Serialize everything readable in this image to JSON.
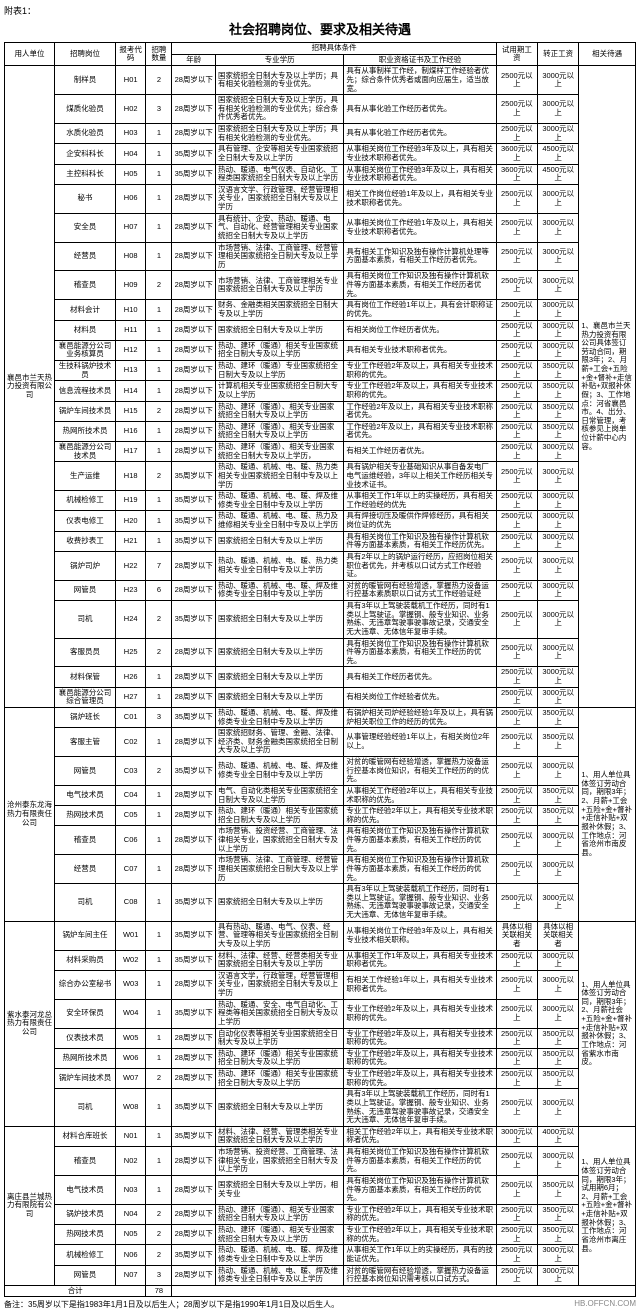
{
  "top_label": "附表1：",
  "title": "社会招聘岗位、要求及相关待遇",
  "headers": {
    "unit": "用人单位",
    "position": "招聘岗位",
    "code": "报考代码",
    "count": "招聘数量",
    "cond_group": "招聘具体条件",
    "age": "年龄",
    "edu": "专业学历",
    "exp": "职业资格证书及工作经验",
    "try": "试用期工资",
    "reg": "转正工资",
    "treat": "相关待遇"
  },
  "groups": [
    {
      "unit": "襄邑市兰天热力投资有限公司",
      "treat": "1、襄邑市兰天热力投资有限公司具体签订劳动合同，期限3年；2、月薪+工会+五险+金+督补+走信补贴+双报补休假；3、工作地点：河省襄邑市。4、出分、日常管理，考核参见上岗单位计薪中心内容。",
      "rows": [
        {
          "pos": "制样员",
          "code": "H01",
          "num": "2",
          "age": "28周岁以下",
          "edu": "国家统招全日制大专及以上学历；具有相关化验检测的专业优先。",
          "exp": "具有从事制样工作经，制煤样工作经验者优先；综合条件优秀者或面向应届生，适当放宽。",
          "try": "2500元以上",
          "reg": "3000元以上"
        },
        {
          "pos": "煤质化验员",
          "code": "H02",
          "num": "3",
          "age": "28周岁以下",
          "edu": "国家统招全日制大专及以上学历，具有相关化验检测的专业优先；综合条件优秀者优先。",
          "exp": "具有从事化验工作经历者优先。",
          "try": "2500元以上",
          "reg": "3000元以上"
        },
        {
          "pos": "水质化验员",
          "code": "H03",
          "num": "1",
          "age": "28周岁以下",
          "edu": "国家统招全日制大专及以上学历；具有相关化验检测的专业优先。",
          "exp": "具有从事化验工作经历者优先。",
          "try": "2500元以上",
          "reg": "3000元以上"
        },
        {
          "pos": "企安科科长",
          "code": "H04",
          "num": "1",
          "age": "35周岁以下",
          "edu": "具有管理、企安等相关专业国家统招全日制大专及以上学历",
          "exp": "从事相关岗位工作经验3年及以上，具有相关专业技术职称者优先。",
          "try": "3600元以上",
          "reg": "4500元以上"
        },
        {
          "pos": "主控科科长",
          "code": "H05",
          "num": "1",
          "age": "35周岁以下",
          "edu": "热动、暖通、电气仪表、自动化、工程类国家统招全日制大专及以上学历",
          "exp": "从事相关岗位工作经验3年及以上，具有相关专业技术职称者优先。",
          "try": "3600元以上",
          "reg": "4500元以上"
        },
        {
          "pos": "秘书",
          "code": "H06",
          "num": "1",
          "age": "28周岁以下",
          "edu": "汉语言文学、行政管理、经营管理相关专业，国家统招全日制大专及以上学历",
          "exp": "相关工作岗位经验1年及以上，具有相关专业技术职称者优先。",
          "try": "2500元以上",
          "reg": "3000元以上"
        },
        {
          "pos": "安全员",
          "code": "H07",
          "num": "1",
          "age": "28周岁以下",
          "edu": "具有统计、企安、热动、暖通、电气、自动化、经营管理相关专业国家统招全日制大专及以上学历",
          "exp": "从事相关岗位工作经验1年及以上，具有相关专业技术职称者优先。",
          "try": "2500元以上",
          "reg": "3000元以上"
        },
        {
          "pos": "经营员",
          "code": "H08",
          "num": "1",
          "age": "28周岁以下",
          "edu": "市场营销、法律、工商管理、经营管理相关国家统招全日制大专及以上学历",
          "exp": "具有相关工作知识及独有操作计算机处理等方面基本素质，有相关工作经历者优先。",
          "try": "2500元以上",
          "reg": "3000元以上"
        },
        {
          "pos": "稽查员",
          "code": "H09",
          "num": "2",
          "age": "28周岁以下",
          "edu": "市场营销、法律、工商管理相关专业国家统招全日制大专及以上学历",
          "exp": "具有相关岗位工作知识及独有操作计算机软件等方面基本素质，有相关工作经历者优先。",
          "try": "2500元以上",
          "reg": "3000元以上"
        },
        {
          "pos": "材料会计",
          "code": "H10",
          "num": "1",
          "age": "28周岁以下",
          "edu": "财务、金融类相关国家统招全日制大专及以上学历",
          "exp": "具有岗位工作经验1年以上，具有会计职称证的优先。",
          "try": "2500元以上",
          "reg": "3000元以上"
        },
        {
          "pos": "材料员",
          "code": "H11",
          "num": "1",
          "age": "28周岁以下",
          "edu": "国家统招全日制大专及以上学历",
          "exp": "有相关岗位工作经历者优先。",
          "try": "2500元以上",
          "reg": "3000元以上"
        },
        {
          "pos": "襄邑能源分公司业务核算员",
          "code": "H12",
          "num": "1",
          "age": "28周岁以下",
          "edu": "热动、建环（暖通）相关专业国家统招全日制大专及以上学历",
          "exp": "具有相关专业技术职称者优先。",
          "try": "2500元以上",
          "reg": "3000元以上"
        },
        {
          "pos": "生技科锅炉技术员",
          "code": "H13",
          "num": "1",
          "age": "28周岁以下",
          "edu": "热动、建环（暖通）专业国家统招全日制大专及以上学历",
          "exp": "专业工作经验2年及以上，具有相关专业技术职称的优先。",
          "try": "2500元以上",
          "reg": "3500元以上"
        },
        {
          "pos": "信息流程技术员",
          "code": "H14",
          "num": "1",
          "age": "28周岁以下",
          "edu": "计算机相关专业国家统招全日制大专及以上学历",
          "exp": "专业工作经验2年及以上，具有相关专业技术职称的优先。",
          "try": "2500元以上",
          "reg": "3500元以上"
        },
        {
          "pos": "锅炉车间技术员",
          "code": "H15",
          "num": "2",
          "age": "28周岁以下",
          "edu": "热动、建环（暖通）、相关专业国家统招全日制大专及以上学历",
          "exp": "工作经验2年及以上，具有相关专业技术职称者优先。",
          "try": "2500元以上",
          "reg": "3500元以上"
        },
        {
          "pos": "热网所技术员",
          "code": "H16",
          "num": "1",
          "age": "28周岁以下",
          "edu": "热动、建环（暖通）、相关专业国家统招全日制大专及以上学历",
          "exp": "工作经验2年及以上，具有相关专业技术职称者优先。",
          "try": "2500元以上",
          "reg": "3500元以上"
        },
        {
          "pos": "襄邑能源分公司技术员",
          "code": "H17",
          "num": "1",
          "age": "28周岁以下",
          "edu": "热动、建环（暖通）、相关专业国家统招全日制大专及以上学历，",
          "exp": "有相关工作经历者优先。",
          "try": "2500元以上",
          "reg": "3000元以上"
        },
        {
          "pos": "生产运维",
          "code": "H18",
          "num": "2",
          "age": "35周岁以下",
          "edu": "热动、暖通、机械、电、暖、热力类相关专业国家统招全日制中专及以上学历",
          "exp": "具有锅炉相关专业基础知识从事自备发电厂电气运维经验，3年以上相关工作经历相关专业技术证书。",
          "try": "2500元以上",
          "reg": "3000元以上"
        },
        {
          "pos": "机械检修工",
          "code": "H19",
          "num": "1",
          "age": "35周岁以下",
          "edu": "热动、暖通、机械、电、暖、焊及维修类专业全日制中专及以上学历",
          "exp": "从事相关工作1年以上的实操经历，具有相关工作经验经的优先",
          "try": "2500元以上",
          "reg": "3000元以上"
        },
        {
          "pos": "仪表电修工",
          "code": "H20",
          "num": "1",
          "age": "35周岁以下",
          "edu": "热动、暖通、机械、电、暖、热力及维修相关专业全日制中专及以上学历",
          "exp": "具有焊接切压及暖供作焊修经历，具有相关岗位证的优先",
          "try": "2500元以上",
          "reg": "3000元以上"
        },
        {
          "pos": "收费抄表工",
          "code": "H21",
          "num": "1",
          "age": "35周岁以下",
          "edu": "国家统招全日制大专及以上学历",
          "exp": "具有相关岗位工作知识及独有操作计算机软件等方面基本素质，有相关工作经历优先。",
          "try": "2500元以上",
          "reg": "3000元以上"
        },
        {
          "pos": "锅炉司炉",
          "code": "H22",
          "num": "7",
          "age": "28周岁以下",
          "edu": "热动、暖通、机械、电、暖、热力类相关专业全日制中专及以上学历",
          "exp": "具有2年以上的锅炉运行经历，应招岗位相关职位者优先，并考核以口试方式工作经验证。",
          "try": "2500元以上",
          "reg": "3000元以上"
        },
        {
          "pos": "网管员",
          "code": "H23",
          "num": "6",
          "age": "28周岁以下",
          "edu": "热动、暖通、机械、电、暖、焊及维修类专业全日制中专及以上学历",
          "exp": "对贫的暖管网有经验增透，掌握热力设备运行控基本素质职以口试方式工作经验证经",
          "try": "2500元以上",
          "reg": "3000元以上"
        },
        {
          "pos": "司机",
          "code": "H24",
          "num": "2",
          "age": "35周岁以下",
          "edu": "国家统招全日制大专及以上学历",
          "exp": "具有3年以上驾驶装载机工作经历，同时有1类以上驾驶证。掌握钢、般专业知识、业务熟练、无违章驾驶事驶事故记录，交通安全无大违章、无体信年复审手续。",
          "try": "2500元以上",
          "reg": "3000元以上"
        },
        {
          "pos": "客服员员",
          "code": "H25",
          "num": "2",
          "age": "28周岁以下",
          "edu": "国家统招全日制大专及以上学历",
          "exp": "具有相关岗位工作知识及独有操作计算机软件等方面基本素质，有相关工作经历的优先。",
          "try": "2500元以上",
          "reg": "3000元以上"
        },
        {
          "pos": "材料保管",
          "code": "H26",
          "num": "1",
          "age": "28周岁以下",
          "edu": "国家统招全日制大专及以上学历",
          "exp": "具有相关工作经历者优先。",
          "try": "2500元以上",
          "reg": "3000元以上"
        },
        {
          "pos": "襄邑能源分公司综合管理员",
          "code": "H27",
          "num": "1",
          "age": "28周岁以下",
          "edu": "国家统招全日制大专及以上学历",
          "exp": "有相关岗位工作经验者优先。",
          "try": "2500元以上",
          "reg": "3000元以上"
        }
      ]
    },
    {
      "unit": "沧州泰东龙海热力有限责任公司",
      "treat": "1、用人单位具体签订劳动合同，期限3年；2、月薪+工会+五险+金+督补+走信补贴+双报补休假；3、工作地点：河省沧州市南皮县。",
      "rows": [
        {
          "pos": "锅炉班长",
          "code": "C01",
          "num": "3",
          "age": "35周岁以下",
          "edu": "热动、暖通、机械、电、暖、焊及维修类专业全日制中专及以上学历",
          "exp": "有锅炉相关司炉经验经验1年及以上，具有锅炉相关职位工作的经历的优先。",
          "try": "2500元以上",
          "reg": "3500元以上"
        },
        {
          "pos": "客服主管",
          "code": "C02",
          "num": "1",
          "age": "28周岁以下",
          "edu": "国家统招财务、管理、金融、法律、经济类、财务金融类国家统招全日制大专及以上学历",
          "exp": "从事管理经验经验1年以上，有相关岗位2年以上。",
          "try": "2500元以上",
          "reg": "3500元以上"
        },
        {
          "pos": "网管员",
          "code": "C03",
          "num": "2",
          "age": "35周岁以下",
          "edu": "热动、暖通、机械、电、暖、焊及维修类专业全日制中专及以上学历",
          "exp": "对贫的暖管网有经验增透，掌握热力设备运行控基本岗位知识，有相关工作经历的的优先。",
          "try": "2500元以上",
          "reg": "3000元以上"
        },
        {
          "pos": "电气技术员",
          "code": "C04",
          "num": "1",
          "age": "28周岁以下",
          "edu": "电气、自动化类相关专业国家统招全日制大专及以上学历",
          "exp": "从事相关工作经验2年以上，具有相关专业技术职称的优先。",
          "try": "2500元以上",
          "reg": "3500元以上"
        },
        {
          "pos": "热网技术员",
          "code": "C05",
          "num": "1",
          "age": "28周岁以下",
          "edu": "热动、建环（暖通）相关专业国家统招全日制大专及以上学历",
          "exp": "专业工作经验2年以上，具有相关专业技术职称的优先。",
          "try": "2500元以上",
          "reg": "3500元以上"
        },
        {
          "pos": "稽查员",
          "code": "C06",
          "num": "1",
          "age": "28周岁以下",
          "edu": "市场营销、投资经营、工商管理、法律相关专业，国家统招全日制大专及以上学历",
          "exp": "具有相关岗位工作知识及独有操作计算机软件等方面基本素质，有相关工作经历的优先。",
          "try": "2500元以上",
          "reg": "3000元以上"
        },
        {
          "pos": "经营员",
          "code": "C07",
          "num": "1",
          "age": "28周岁以下",
          "edu": "市场营销、法律、工商管理、经营管理相关国家统招全日制大专及以上学历",
          "exp": "具有相关岗位工作知识及独有操作计算机软件等方面基本素质，有相关工作经历的优先。",
          "try": "2500元以上",
          "reg": "3000元以上"
        },
        {
          "pos": "司机",
          "code": "C08",
          "num": "1",
          "age": "35周岁以下",
          "edu": "国家统招全日制大专及以上学历",
          "exp": "具有3年以上驾驶装载机工作经历，同时有1类以上驾驶证。掌握钢、般专业知识、业务熟练、无违章驾驶事驶事故记录，交通安全无大违章、无体信年复审手续。",
          "try": "2500元以上",
          "reg": "3000元以上"
        }
      ]
    },
    {
      "unit": "紫水泰河龙总热力有限责任公司",
      "treat": "1、用人单位具体签订劳动合同，期限3年；2、月薪社会+五险+金+督补+走信补贴+双报补休假；3、工作地点：河省紫水市南皮。",
      "rows": [
        {
          "pos": "锅炉车间主任",
          "code": "W01",
          "num": "1",
          "age": "35周岁以下",
          "edu": "具有热动、暖通、电气、仪表、经营、管理等相关专业国家统招全日制大专及以上学历",
          "exp": "从事相关岗位工作经验3年及以上，具有相关专业技术相关职称。",
          "try": "具体以相关联相关者",
          "reg": "具体以相关联相关者"
        },
        {
          "pos": "材料采购员",
          "code": "W02",
          "num": "1",
          "age": "35周岁以下",
          "edu": "材料、法律、经营、经营类相关专业国家统招全日制大专及以上学历",
          "exp": "从事相关工作1年及以上，具有相关专业技术职称者优先。",
          "try": "2500元以上",
          "reg": "3000元以上"
        },
        {
          "pos": "综合办公室秘书",
          "code": "W03",
          "num": "1",
          "age": "28周岁以下",
          "edu": "汉语言文学，行政管理，经营管理相关专业，国家统招全日制大专及以上学历",
          "exp": "有相关工作经验1年以上，具有相关专业技术职称者优先。",
          "try": "2500元以上",
          "reg": "3000元以上"
        },
        {
          "pos": "安全环保员",
          "code": "W04",
          "num": "1",
          "age": "35周岁以下",
          "edu": "热动、暖通、安全、电气自动化、工程类等相关国家统招全日制大专及以上学历",
          "exp": "专业工作经验2年及以上，具有相关专业技术职称的优先。",
          "try": "2500元以上",
          "reg": "3000元以上"
        },
        {
          "pos": "仪表技术员",
          "code": "W05",
          "num": "1",
          "age": "28周岁以下",
          "edu": "自动化仪表等相关专业国家统招全日制大专及以上学历",
          "exp": "专业工作经验2年及以上，具有相关专业技术职称的优先。",
          "try": "2500元以上",
          "reg": "3500元以上"
        },
        {
          "pos": "热网所技术员",
          "code": "W06",
          "num": "1",
          "age": "28周岁以下",
          "edu": "热动、建环（暖通）相关专业国家统招全日制大专及以上学历",
          "exp": "专业工作经验2年及以上，具有相关专业技术职称的优先。",
          "try": "2500元以上",
          "reg": "3500元以上"
        },
        {
          "pos": "锅炉车间技术员",
          "code": "W07",
          "num": "2",
          "age": "28周岁以下",
          "edu": "热动、建环（暖通）相关专业国家统招全日制大专及以上学历",
          "exp": "专业工作经验2年及以上，具有相关专业技术职称的优先。",
          "try": "2500元以上",
          "reg": "3500元以上"
        },
        {
          "pos": "司机",
          "code": "W08",
          "num": "1",
          "age": "35周岁以下",
          "edu": "国家统招全日制大专及以上学历",
          "exp": "具有3年以上驾驶装载机工作经历，同时有1类以上驾驶证。掌握钢、般专业知识、业务熟练、无违章驾驶事驶事故记录，交通安全无大违章、无体信年复审手续。",
          "try": "2500元以上",
          "reg": "3000元以上"
        }
      ]
    },
    {
      "unit": "离庄县兰城热力有限院有公司",
      "treat": "1、用人单位具体签订劳动合同，期限3年；试用期6月；2、月薪+工会+五险+金+督补+走信补贴+双报补休假；3、工作地点：河省沧州市离庄县。",
      "rows": [
        {
          "pos": "材料合库班长",
          "code": "N01",
          "num": "1",
          "age": "35周岁以下",
          "edu": "材料、法律、经营、管理类相关专业国家统招全日制大专及以上学历",
          "exp": "相关工作经验2年以上，具有相关专业技术职称者优先。",
          "try": "3000元以上",
          "reg": "4000元以上"
        },
        {
          "pos": "稽查员",
          "code": "N02",
          "num": "1",
          "age": "28周岁以下",
          "edu": "市场营销、投资经营、工商管理、法律相关专业，国家统招全日制大专及以上学历",
          "exp": "具有相关岗位工作知识及独有操作计算机软件等方面基本素质，有相关工作经历的优先。",
          "try": "2500元以上",
          "reg": "3000元以上"
        },
        {
          "pos": "电气技术员",
          "code": "N03",
          "num": "1",
          "age": "28周岁以下",
          "edu": "国家统招全日制大专及以上学历，相关专业",
          "exp": "具有相关岗位工作知识及独有操作计算机软件等方面基本素质，有相关工作经历的优先。",
          "try": "2500元以上",
          "reg": "3500元以上"
        },
        {
          "pos": "锅炉技术员",
          "code": "N04",
          "num": "2",
          "age": "28周岁以下",
          "edu": "热动、建环（暖通）、相关专业国家统招全日制大专及以上学历",
          "exp": "专业工作经验2年以上，具有相关专业技术职称的优先。",
          "try": "2500元以上",
          "reg": "3500元以上"
        },
        {
          "pos": "热网技术员",
          "code": "N05",
          "num": "2",
          "age": "28周岁以下",
          "edu": "热动、建环（暖通）、相关专业国家统招全日制大专及以上学历",
          "exp": "专业工作经验2年以上，具有相关专业技术职称的优先。",
          "try": "2500元以上",
          "reg": "3500元以上"
        },
        {
          "pos": "机械检修工",
          "code": "N06",
          "num": "2",
          "age": "35周岁以下",
          "edu": "热动、暖通、机械、电、暖、焊及维修类专业全日制中专及以上学历",
          "exp": "从事相关工作1年以上的实操经历，具有的技能证优先。",
          "try": "2500元以上",
          "reg": "3000元以上"
        },
        {
          "pos": "网管员",
          "code": "N07",
          "num": "3",
          "age": "28周岁以下",
          "edu": "热动、暖通、机械、电、暖、焊及维修类专业全日制中专及以上学历",
          "exp": "对贫的暖管网有经验增透，掌握热力设备运行控基本岗位知识需考核以口试方式。",
          "try": "2500元以上",
          "reg": "3000元以上"
        }
      ]
    }
  ],
  "total_row": {
    "label": "合计",
    "value": "78"
  },
  "footnote": "备注：35周岁以下是指1983年1月1日及以后生人；28周岁以下是指1990年1月1日及以后生人。",
  "watermark": "HB.OFFCN.COM"
}
